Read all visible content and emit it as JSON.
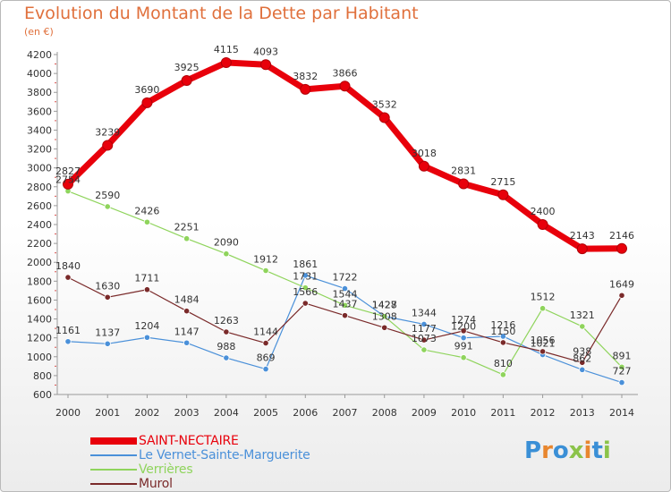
{
  "chart_data": {
    "type": "line",
    "title": "Evolution du Montant de la Dette par Habitant",
    "subtitle": "(en €)",
    "x": [
      "2000",
      "2001",
      "2002",
      "2003",
      "2004",
      "2005",
      "2006",
      "2007",
      "2008",
      "2009",
      "2010",
      "2011",
      "2012",
      "2013",
      "2014"
    ],
    "ylim": [
      600,
      4200
    ],
    "yticks": [
      600,
      800,
      1000,
      1200,
      1400,
      1600,
      1800,
      2000,
      2200,
      2400,
      2600,
      2800,
      3000,
      3200,
      3400,
      3600,
      3800,
      4000,
      4200
    ],
    "grid": false,
    "legend_position": "bottom-left",
    "series": [
      {
        "name": "SAINT-NECTAIRE",
        "color": "#e8000b",
        "values": [
          2827,
          3239,
          3690,
          3925,
          4115,
          4093,
          3832,
          3866,
          3532,
          3018,
          2831,
          2715,
          2400,
          2143,
          2146
        ]
      },
      {
        "name": "Le Vernet-Sainte-Marguerite",
        "color": "#4a90d9",
        "values": [
          1161,
          1137,
          1204,
          1147,
          988,
          869,
          1861,
          1722,
          1428,
          1344,
          1200,
          1216,
          1021,
          862,
          727
        ]
      },
      {
        "name": "Verrières",
        "color": "#8fd45c",
        "values": [
          2754,
          2590,
          2426,
          2251,
          2090,
          1912,
          1731,
          1544,
          1427,
          1073,
          991,
          810,
          1512,
          1321,
          891
        ]
      },
      {
        "name": "Murol",
        "color": "#7a2a2a",
        "values": [
          1840,
          1630,
          1711,
          1484,
          1263,
          1144,
          1566,
          1437,
          1308,
          1177,
          1274,
          1150,
          1056,
          938,
          1649
        ]
      }
    ]
  },
  "branding": {
    "logo_letters": [
      "P",
      "r",
      "o",
      "x",
      "i",
      "t",
      "i"
    ],
    "logo_colors": [
      "#3a8fd6",
      "#e8862e",
      "#3a8fd6",
      "#8bc34a",
      "#e8862e",
      "#3a8fd6",
      "#8bc34a"
    ]
  }
}
